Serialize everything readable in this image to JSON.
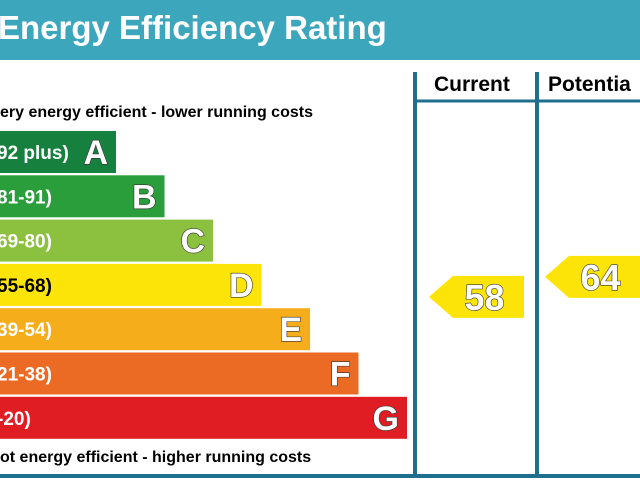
{
  "title": "Energy Efficiency Rating",
  "columns": {
    "current": "Current",
    "potential": "Potentia"
  },
  "captions": {
    "top": "ery energy efficient - lower running costs",
    "bottom": "ot energy efficient - higher running costs"
  },
  "chart_data": {
    "type": "bar",
    "bands": [
      {
        "letter": "A",
        "range": "92 plus)",
        "color": "#16813e",
        "dark_text": false
      },
      {
        "letter": "B",
        "range": "81-91)",
        "color": "#2b9e3c",
        "dark_text": false
      },
      {
        "letter": "C",
        "range": "69-80)",
        "color": "#8cc03f",
        "dark_text": false
      },
      {
        "letter": "D",
        "range": "55-68)",
        "color": "#fde408",
        "dark_text": true
      },
      {
        "letter": "E",
        "range": "39-54)",
        "color": "#f6ad1b",
        "dark_text": false
      },
      {
        "letter": "F",
        "range": "21-38)",
        "color": "#eb6b24",
        "dark_text": false
      },
      {
        "letter": "G",
        "range": "-20)",
        "color": "#e01d22",
        "dark_text": false
      }
    ],
    "ratings": [
      {
        "column": "current",
        "value": 58,
        "band": "D"
      },
      {
        "column": "potential",
        "value": 64,
        "band": "D"
      }
    ]
  }
}
